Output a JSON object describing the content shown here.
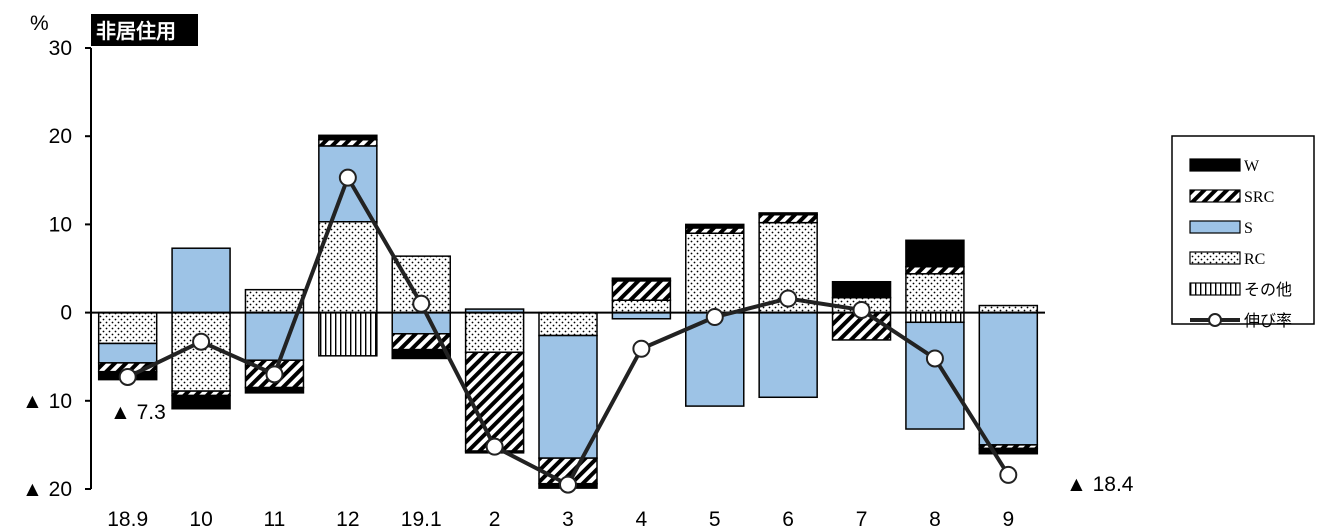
{
  "chart_data": {
    "type": "bar",
    "stacked": true,
    "title": "非居住用",
    "unit_label": "%",
    "ylim": [
      -20,
      30
    ],
    "yticks": [
      {
        "value": 30,
        "label": "30"
      },
      {
        "value": 20,
        "label": "20"
      },
      {
        "value": 10,
        "label": "10"
      },
      {
        "value": 0,
        "label": "0"
      },
      {
        "value": -10,
        "label": "▲ 10"
      },
      {
        "value": -20,
        "label": "▲ 20"
      }
    ],
    "categories": [
      "18.9",
      "10",
      "11",
      "12",
      "19.1",
      "2",
      "3",
      "4",
      "5",
      "6",
      "7",
      "8",
      "9"
    ],
    "series": [
      {
        "name": "その他",
        "pattern": "vlines",
        "values": [
          0,
          0,
          0,
          -4.9,
          0,
          0,
          0,
          0,
          0,
          0,
          0,
          -1.1,
          0
        ]
      },
      {
        "name": "RC",
        "pattern": "dots",
        "values": [
          -3.5,
          -8.9,
          2.6,
          10.3,
          6.4,
          -4.5,
          -2.6,
          1.4,
          9.0,
          10.2,
          1.7,
          4.4,
          0.8
        ]
      },
      {
        "name": "S",
        "pattern": "blue",
        "values": [
          -2.2,
          7.3,
          -5.4,
          8.6,
          -2.4,
          0.4,
          -13.9,
          -0.7,
          -10.6,
          -9.6,
          0,
          -12.1,
          -15.0
        ]
      },
      {
        "name": "SRC",
        "pattern": "hatch",
        "values": [
          -1.0,
          -0.5,
          -3.1,
          0.7,
          -1.8,
          -11.2,
          -2.9,
          2.2,
          0.6,
          0.9,
          -3.1,
          0.8,
          -0.4
        ]
      },
      {
        "name": "W",
        "pattern": "black",
        "values": [
          -0.9,
          -1.5,
          -0.6,
          0.5,
          -1.0,
          -0.2,
          -0.5,
          0.3,
          0.4,
          0.2,
          1.8,
          3.0,
          -0.6
        ]
      }
    ],
    "line": {
      "name": "伸び率",
      "values": [
        -7.3,
        -3.3,
        -7.0,
        15.3,
        1.0,
        -15.2,
        -19.5,
        -4.1,
        -0.5,
        1.6,
        0.3,
        -5.2,
        -18.4
      ]
    },
    "annotations": [
      "▲ 7.3",
      "▲ 18.4"
    ],
    "legend": {
      "position": "right",
      "order": [
        "W",
        "SRC",
        "S",
        "RC",
        "その他",
        "伸び率"
      ]
    },
    "grid": false,
    "colors": {
      "blue": "#9DC3E6",
      "black": "#000000",
      "line": "#222222"
    }
  }
}
